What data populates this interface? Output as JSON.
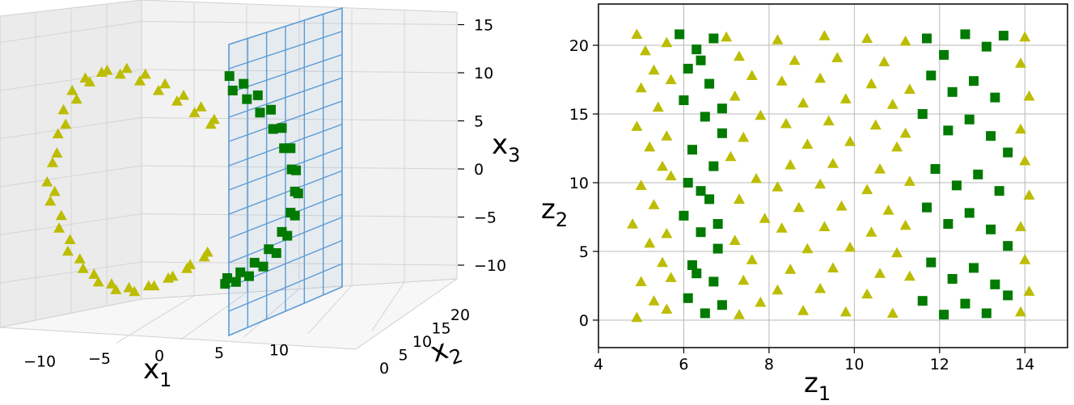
{
  "colors": {
    "class_a": "#bcbc00",
    "class_b": "#007a00",
    "plane": "#5b9bd5",
    "grid": "#b8b8b8"
  },
  "chart_data": [
    {
      "type": "scatter",
      "projection": "3d",
      "title": "",
      "xlabel": "x",
      "xlabel_sub": "1",
      "ylabel": "x",
      "ylabel_sub": "2",
      "zlabel": "x",
      "zlabel_sub": "3",
      "xticks": [
        "−10",
        "−5",
        "0",
        "5",
        "10"
      ],
      "yticks": [
        "0",
        "5",
        "10",
        "15",
        "20"
      ],
      "zticks": [
        "15",
        "10",
        "5",
        "0",
        "−5",
        "−10"
      ],
      "xlim": [
        -12,
        14
      ],
      "ylim": [
        0,
        21
      ],
      "zlim": [
        -12,
        15
      ],
      "grid": true,
      "decision_plane": {
        "x1": 5,
        "description": "vertical plane x1 = 5"
      },
      "series": [
        {
          "marker": "triangle",
          "color": "#bcbc00",
          "x1": [
            -10,
            -9.5,
            -9,
            -8.2,
            -7,
            -5.5,
            -3.8,
            -2,
            -0.3,
            1.4,
            3,
            4.5,
            -9.8,
            -9.2,
            -8.4,
            -7.5,
            -6.2,
            -4.6,
            -3,
            -1.2,
            0.6,
            2.3,
            3.9,
            -10.5,
            -9.6,
            -8.8,
            -7.8,
            -6.6,
            -5,
            -3.2,
            -1.5,
            0.3,
            2,
            3.6,
            4.8,
            -10.2,
            -9.4,
            -8.6,
            -7.2,
            -5.8,
            -4.2,
            -2.5,
            -0.7,
            1,
            2.6,
            4.2
          ],
          "z": [
            2,
            5,
            7.5,
            9.5,
            10.8,
            11.4,
            11.2,
            10.5,
            9.5,
            8.4,
            7.2,
            6,
            -1,
            -3.5,
            -6,
            -8,
            -9.6,
            -10.6,
            -11,
            -10.8,
            -10,
            -9,
            -7.8,
            0,
            3,
            6,
            8.6,
            10.4,
            11.6,
            11.8,
            11.2,
            10.2,
            9,
            7.8,
            6.5,
            -2,
            -4.8,
            -7.2,
            -9,
            -10.4,
            -11.2,
            -11.4,
            -10.8,
            -9.8,
            -8.6,
            -7.3
          ]
        },
        {
          "marker": "square",
          "color": "#007a00",
          "x1": [
            6.2,
            7.5,
            8.8,
            10,
            11,
            11.8,
            12.3,
            12.5,
            12.2,
            11.5,
            10.5,
            9.3,
            8,
            6.8,
            5.8,
            6.5,
            7.8,
            9,
            10.2,
            11.2,
            11.9,
            12.2,
            11.8,
            11,
            9.8,
            8.5,
            7.2,
            6
          ],
          "z": [
            11,
            10.2,
            9,
            7.5,
            5.6,
            3.5,
            1.2,
            -1.2,
            -3.5,
            -5.6,
            -7.4,
            -8.8,
            -9.8,
            -10.4,
            -10.6,
            9.5,
            8.6,
            7.2,
            5.5,
            3.5,
            1.3,
            -1,
            -3.2,
            -5.2,
            -7,
            -8.4,
            -9.4,
            -10
          ]
        }
      ]
    },
    {
      "type": "scatter",
      "title": "",
      "xlabel": "z",
      "xlabel_sub": "1",
      "ylabel": "z",
      "ylabel_sub": "2",
      "xlim": [
        4,
        15
      ],
      "ylim": [
        -2,
        23
      ],
      "xticks": [
        4,
        6,
        8,
        10,
        12,
        14
      ],
      "yticks": [
        0,
        5,
        10,
        15,
        20
      ],
      "grid": true,
      "series": [
        {
          "marker": "triangle",
          "color": "#bcbc00",
          "points": [
            [
              4.9,
              20.8
            ],
            [
              5.1,
              19.6
            ],
            [
              5.3,
              18.2
            ],
            [
              5.0,
              16.9
            ],
            [
              5.4,
              15.5
            ],
            [
              4.9,
              14.1
            ],
            [
              5.2,
              12.6
            ],
            [
              5.5,
              11.2
            ],
            [
              5.0,
              9.8
            ],
            [
              5.3,
              8.4
            ],
            [
              4.8,
              7.0
            ],
            [
              5.2,
              5.6
            ],
            [
              5.5,
              4.2
            ],
            [
              5.0,
              2.8
            ],
            [
              5.3,
              1.4
            ],
            [
              4.9,
              0.2
            ],
            [
              5.6,
              20.2
            ],
            [
              5.7,
              17.5
            ],
            [
              5.6,
              13.4
            ],
            [
              5.7,
              10.5
            ],
            [
              5.6,
              6.3
            ],
            [
              5.7,
              3.1
            ],
            [
              5.6,
              0.8
            ],
            [
              7.0,
              20.6
            ],
            [
              7.3,
              19.2
            ],
            [
              7.6,
              17.8
            ],
            [
              7.2,
              16.3
            ],
            [
              7.8,
              14.9
            ],
            [
              7.4,
              13.3
            ],
            [
              7.1,
              11.9
            ],
            [
              7.7,
              10.3
            ],
            [
              7.3,
              8.8
            ],
            [
              7.9,
              7.4
            ],
            [
              7.2,
              5.8
            ],
            [
              7.6,
              4.4
            ],
            [
              7.4,
              2.9
            ],
            [
              7.8,
              1.3
            ],
            [
              7.3,
              0.4
            ],
            [
              8.2,
              20.4
            ],
            [
              8.6,
              18.9
            ],
            [
              8.3,
              17.4
            ],
            [
              8.8,
              15.8
            ],
            [
              8.4,
              14.3
            ],
            [
              8.9,
              12.8
            ],
            [
              8.5,
              11.3
            ],
            [
              8.2,
              9.7
            ],
            [
              8.7,
              8.2
            ],
            [
              8.3,
              6.7
            ],
            [
              8.9,
              5.2
            ],
            [
              8.5,
              3.7
            ],
            [
              8.2,
              2.2
            ],
            [
              8.8,
              0.7
            ],
            [
              9.3,
              20.7
            ],
            [
              9.6,
              19.1
            ],
            [
              9.2,
              17.6
            ],
            [
              9.8,
              16.1
            ],
            [
              9.4,
              14.5
            ],
            [
              9.9,
              13.0
            ],
            [
              9.5,
              11.4
            ],
            [
              9.2,
              9.9
            ],
            [
              9.7,
              8.3
            ],
            [
              9.3,
              6.8
            ],
            [
              9.9,
              5.3
            ],
            [
              9.5,
              3.8
            ],
            [
              9.2,
              2.3
            ],
            [
              9.8,
              0.6
            ],
            [
              10.3,
              20.5
            ],
            [
              10.7,
              18.8
            ],
            [
              10.4,
              17.2
            ],
            [
              10.9,
              15.7
            ],
            [
              10.5,
              14.2
            ],
            [
              11.0,
              12.6
            ],
            [
              10.6,
              11.0
            ],
            [
              10.3,
              9.5
            ],
            [
              10.8,
              8.0
            ],
            [
              10.4,
              6.4
            ],
            [
              11.0,
              4.9
            ],
            [
              10.6,
              3.4
            ],
            [
              10.3,
              1.9
            ],
            [
              10.9,
              0.5
            ],
            [
              11.2,
              20.3
            ],
            [
              11.3,
              16.8
            ],
            [
              11.2,
              13.6
            ],
            [
              11.3,
              10.1
            ],
            [
              11.2,
              6.9
            ],
            [
              11.3,
              3.2
            ],
            [
              14.0,
              20.6
            ],
            [
              13.9,
              18.7
            ],
            [
              14.1,
              16.3
            ],
            [
              13.9,
              13.9
            ],
            [
              14.0,
              11.6
            ],
            [
              14.1,
              9.1
            ],
            [
              13.9,
              6.8
            ],
            [
              14.0,
              4.4
            ],
            [
              14.1,
              2.1
            ],
            [
              13.9,
              0.6
            ]
          ]
        },
        {
          "marker": "square",
          "color": "#007a00",
          "points": [
            [
              5.9,
              20.8
            ],
            [
              6.3,
              19.7
            ],
            [
              6.7,
              20.5
            ],
            [
              6.1,
              18.3
            ],
            [
              6.6,
              17.2
            ],
            [
              6.0,
              16.0
            ],
            [
              6.5,
              14.8
            ],
            [
              6.9,
              13.6
            ],
            [
              6.2,
              12.4
            ],
            [
              6.7,
              11.2
            ],
            [
              6.1,
              10.0
            ],
            [
              6.6,
              8.8
            ],
            [
              6.0,
              7.6
            ],
            [
              6.4,
              6.4
            ],
            [
              6.8,
              5.2
            ],
            [
              6.2,
              4.0
            ],
            [
              6.7,
              2.8
            ],
            [
              6.1,
              1.6
            ],
            [
              6.5,
              0.5
            ],
            [
              6.9,
              1.1
            ],
            [
              6.3,
              3.4
            ],
            [
              6.8,
              7.0
            ],
            [
              6.4,
              9.4
            ],
            [
              6.9,
              15.4
            ],
            [
              6.4,
              18.9
            ],
            [
              11.7,
              20.5
            ],
            [
              12.1,
              19.3
            ],
            [
              12.6,
              20.8
            ],
            [
              13.1,
              19.9
            ],
            [
              13.5,
              20.7
            ],
            [
              11.8,
              17.8
            ],
            [
              12.3,
              16.6
            ],
            [
              12.8,
              17.4
            ],
            [
              13.3,
              16.2
            ],
            [
              11.6,
              15.0
            ],
            [
              12.2,
              13.8
            ],
            [
              12.7,
              14.6
            ],
            [
              13.2,
              13.4
            ],
            [
              13.6,
              12.2
            ],
            [
              11.9,
              11.0
            ],
            [
              12.4,
              9.8
            ],
            [
              12.9,
              10.6
            ],
            [
              13.4,
              9.4
            ],
            [
              11.7,
              8.2
            ],
            [
              12.2,
              7.0
            ],
            [
              12.7,
              7.8
            ],
            [
              13.2,
              6.6
            ],
            [
              13.6,
              5.4
            ],
            [
              11.8,
              4.2
            ],
            [
              12.3,
              3.0
            ],
            [
              12.8,
              3.8
            ],
            [
              13.3,
              2.6
            ],
            [
              11.6,
              1.4
            ],
            [
              12.1,
              0.4
            ],
            [
              12.6,
              1.2
            ],
            [
              13.1,
              0.5
            ],
            [
              13.6,
              1.8
            ]
          ]
        }
      ]
    }
  ]
}
